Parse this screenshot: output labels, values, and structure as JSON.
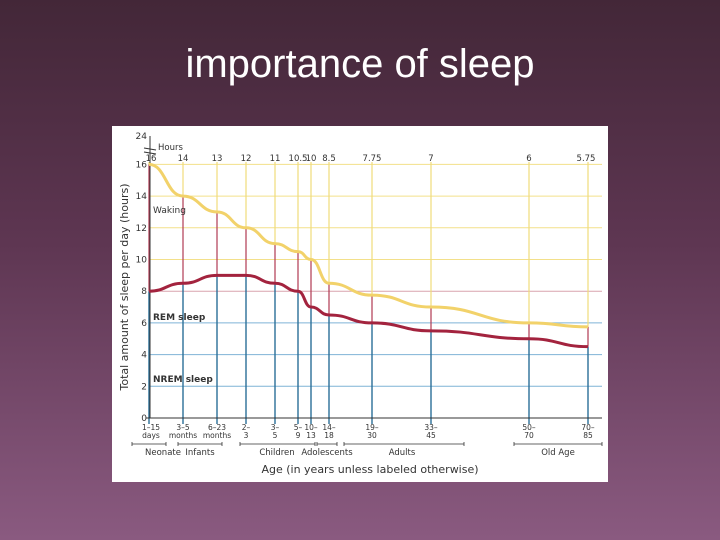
{
  "slide": {
    "title": "importance of sleep"
  },
  "chart_data": {
    "type": "line",
    "ylabel": "Total amount of sleep per day (hours)",
    "xlabel": "Age (in years unless labeled otherwise)",
    "y_ticks": [
      "0",
      "2",
      "4",
      "6",
      "8",
      "10",
      "12",
      "14",
      "16",
      "24"
    ],
    "hours_caption": "Hours",
    "categories": [
      "1–15 days",
      "3–5 months",
      "6–23 months",
      "2–3",
      "3–5",
      "5–9",
      "10–13",
      "14–18",
      "19–30",
      "33–45",
      "50–70",
      "70–85"
    ],
    "hours_labels": [
      "16",
      "14",
      "13",
      "12",
      "11",
      "10.5",
      "10",
      "8.5",
      "7.75",
      "7",
      "6",
      "5.75"
    ],
    "groups": [
      "Neonate",
      "Infants",
      "Children",
      "Adolescents",
      "Adults",
      "Old Age"
    ],
    "annotations": [
      "Waking",
      "REM sleep",
      "NREM sleep"
    ],
    "series": [
      {
        "values": [
          16,
          14,
          13,
          12,
          11,
          10.5,
          10,
          8.5,
          7.75,
          7,
          6,
          5.75
        ]
      },
      {
        "values": [
          8,
          8.5,
          9,
          9,
          8.5,
          8,
          7,
          6.5,
          6,
          5.5,
          5,
          4.5
        ]
      }
    ],
    "colors": {
      "total": "#f2d26a",
      "rem": "#a3233e",
      "axis": "#333333",
      "grid_yellow": "#f3e08a",
      "grid_red": "#d9a3ad",
      "grid_blue": "#7fb3d6",
      "vline_yellow": "#f1dc7a",
      "vline_red": "#b03a52",
      "vline_blue": "#2a6f98"
    }
  }
}
